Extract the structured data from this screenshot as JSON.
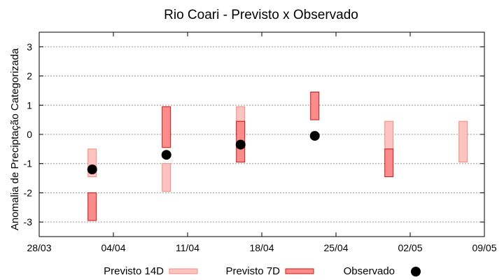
{
  "chart_data": {
    "type": "range-bar-with-points",
    "title": "Rio Coari - Previsto x Observado",
    "ylabel": "Anomalia de Preciptação Categorizada",
    "xlabel": "",
    "ylim": [
      -3.5,
      3.5
    ],
    "yticks": [
      3,
      2,
      1,
      0,
      -1,
      -2,
      -3
    ],
    "ytick_labels": [
      "3",
      "2",
      "1",
      "0",
      "-1",
      "-2",
      "-3"
    ],
    "xlim_days": [
      0,
      42
    ],
    "xticks": [
      {
        "day": 0,
        "label": "28/03"
      },
      {
        "day": 7,
        "label": "04/04"
      },
      {
        "day": 14,
        "label": "11/04"
      },
      {
        "day": 21,
        "label": "18/04"
      },
      {
        "day": 28,
        "label": "25/04"
      },
      {
        "day": 35,
        "label": "02/05"
      },
      {
        "day": 42,
        "label": "09/05"
      }
    ],
    "grid": true,
    "colors": {
      "p14_fill": "#fbc4c0",
      "p14_stroke": "#f48a80",
      "p7_fill": "#fa8c8c",
      "p7_stroke": "#cc1414",
      "observed": "#000000",
      "grid": "#999999"
    },
    "series": [
      {
        "name": "Previsto 14D",
        "kind": "range",
        "data": [
          {
            "day": 5,
            "low": -1.45,
            "high": -0.5
          },
          {
            "day": 12,
            "low": -1.95,
            "high": -1.0
          },
          {
            "day": 19,
            "low": -0.05,
            "high": 0.95
          },
          {
            "day": 33,
            "low": -0.5,
            "high": 0.45
          },
          {
            "day": 40,
            "low": -0.95,
            "high": 0.45
          }
        ]
      },
      {
        "name": "Previsto 7D",
        "kind": "range",
        "data": [
          {
            "day": 5,
            "low": -2.95,
            "high": -2.0
          },
          {
            "day": 12,
            "low": -0.45,
            "high": 0.95
          },
          {
            "day": 19,
            "low": -0.95,
            "high": 0.45
          },
          {
            "day": 26,
            "low": 0.5,
            "high": 1.45
          },
          {
            "day": 33,
            "low": -1.45,
            "high": -0.5
          }
        ]
      },
      {
        "name": "Observado",
        "kind": "point",
        "data": [
          {
            "day": 5,
            "value": -1.2
          },
          {
            "day": 12,
            "value": -0.7
          },
          {
            "day": 19,
            "value": -0.35
          },
          {
            "day": 26,
            "value": -0.05
          }
        ]
      }
    ],
    "legend": {
      "placement": "bottom",
      "items": [
        "Previsto 14D",
        "Previsto 7D",
        "Observado"
      ]
    }
  }
}
